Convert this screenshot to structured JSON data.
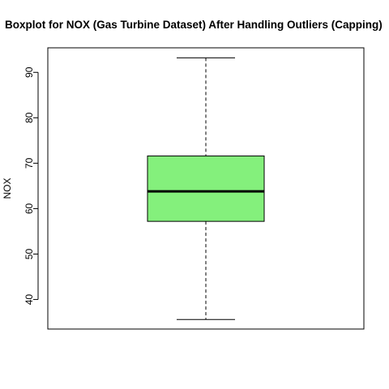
{
  "chart_data": {
    "type": "boxplot",
    "title": "Boxplot for NOX (Gas Turbine Dataset) After Handling Outliers (Capping)",
    "xlabel": "",
    "ylabel": "NOX",
    "ylim": [
      33.5,
      95.4
    ],
    "yticks": [
      40,
      50,
      60,
      70,
      80,
      90
    ],
    "ytick_labels": [
      "40",
      "50",
      "60",
      "70",
      "80",
      "90"
    ],
    "box": {
      "whisker_low": 35.6,
      "q1": 57.2,
      "median": 63.8,
      "q3": 71.6,
      "whisker_high": 93.2
    },
    "box_fill": "#84F07C",
    "grid": false,
    "legend": "none"
  }
}
